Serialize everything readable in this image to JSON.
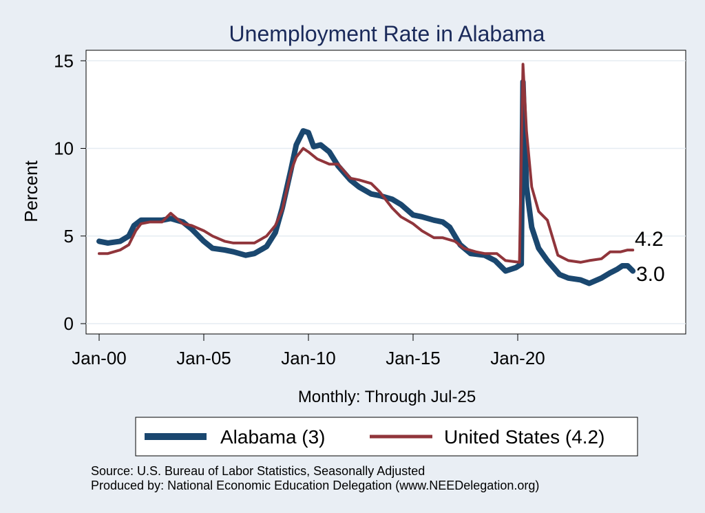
{
  "chart_data": {
    "type": "line",
    "title": "Unemployment Rate in Alabama",
    "xlabel": "Monthly: Through Jul-25",
    "ylabel": "Percent",
    "x_ticks": [
      "Jan-00",
      "Jan-05",
      "Jan-10",
      "Jan-15",
      "Jan-20"
    ],
    "y_ticks": [
      0,
      5,
      10,
      15
    ],
    "ylim": [
      0,
      15.5
    ],
    "xlim": [
      "Jan-00",
      "Jan-28"
    ],
    "grid": true,
    "legend_position": "bottom",
    "end_labels": [
      "4.2",
      "3.0"
    ],
    "series": [
      {
        "name": "Alabama (3)",
        "color": "#1a476f",
        "points": [
          [
            "2000-01",
            4.7
          ],
          [
            "2000-06",
            4.6
          ],
          [
            "2001-01",
            4.7
          ],
          [
            "2001-06",
            5.0
          ],
          [
            "2001-09",
            5.6
          ],
          [
            "2002-01",
            5.9
          ],
          [
            "2002-06",
            5.9
          ],
          [
            "2003-01",
            5.9
          ],
          [
            "2003-06",
            6.0
          ],
          [
            "2004-01",
            5.8
          ],
          [
            "2004-06",
            5.4
          ],
          [
            "2005-01",
            4.7
          ],
          [
            "2005-06",
            4.3
          ],
          [
            "2006-01",
            4.2
          ],
          [
            "2006-06",
            4.1
          ],
          [
            "2007-01",
            3.9
          ],
          [
            "2007-06",
            4.0
          ],
          [
            "2008-01",
            4.4
          ],
          [
            "2008-06",
            5.2
          ],
          [
            "2008-10",
            6.6
          ],
          [
            "2009-03",
            8.8
          ],
          [
            "2009-06",
            10.2
          ],
          [
            "2009-10",
            11.0
          ],
          [
            "2010-01",
            10.9
          ],
          [
            "2010-04",
            10.1
          ],
          [
            "2010-08",
            10.2
          ],
          [
            "2011-01",
            9.8
          ],
          [
            "2011-06",
            9.0
          ],
          [
            "2012-01",
            8.2
          ],
          [
            "2012-06",
            7.8
          ],
          [
            "2013-01",
            7.4
          ],
          [
            "2013-06",
            7.3
          ],
          [
            "2014-01",
            7.1
          ],
          [
            "2014-06",
            6.8
          ],
          [
            "2015-01",
            6.2
          ],
          [
            "2015-06",
            6.1
          ],
          [
            "2016-01",
            5.9
          ],
          [
            "2016-06",
            5.8
          ],
          [
            "2016-10",
            5.5
          ],
          [
            "2017-04",
            4.5
          ],
          [
            "2017-10",
            4.0
          ],
          [
            "2018-06",
            3.9
          ],
          [
            "2018-12",
            3.6
          ],
          [
            "2019-06",
            3.0
          ],
          [
            "2019-12",
            3.2
          ],
          [
            "2020-03",
            3.4
          ],
          [
            "2020-04",
            13.8
          ],
          [
            "2020-06",
            7.8
          ],
          [
            "2020-09",
            5.5
          ],
          [
            "2021-01",
            4.3
          ],
          [
            "2021-06",
            3.6
          ],
          [
            "2022-01",
            2.8
          ],
          [
            "2022-06",
            2.6
          ],
          [
            "2023-01",
            2.5
          ],
          [
            "2023-06",
            2.3
          ],
          [
            "2024-01",
            2.6
          ],
          [
            "2024-06",
            2.9
          ],
          [
            "2024-10",
            3.1
          ],
          [
            "2025-01",
            3.3
          ],
          [
            "2025-04",
            3.3
          ],
          [
            "2025-07",
            3.0
          ]
        ]
      },
      {
        "name": "United States (4.2)",
        "color": "#90353b",
        "points": [
          [
            "2000-01",
            4.0
          ],
          [
            "2000-06",
            4.0
          ],
          [
            "2001-01",
            4.2
          ],
          [
            "2001-06",
            4.5
          ],
          [
            "2001-10",
            5.3
          ],
          [
            "2002-01",
            5.7
          ],
          [
            "2002-06",
            5.8
          ],
          [
            "2003-01",
            5.8
          ],
          [
            "2003-06",
            6.3
          ],
          [
            "2004-01",
            5.7
          ],
          [
            "2004-06",
            5.6
          ],
          [
            "2005-01",
            5.3
          ],
          [
            "2005-06",
            5.0
          ],
          [
            "2006-01",
            4.7
          ],
          [
            "2006-06",
            4.6
          ],
          [
            "2007-01",
            4.6
          ],
          [
            "2007-06",
            4.6
          ],
          [
            "2008-01",
            5.0
          ],
          [
            "2008-06",
            5.6
          ],
          [
            "2008-10",
            6.5
          ],
          [
            "2009-03",
            8.7
          ],
          [
            "2009-06",
            9.5
          ],
          [
            "2009-10",
            10.0
          ],
          [
            "2010-01",
            9.8
          ],
          [
            "2010-06",
            9.4
          ],
          [
            "2011-01",
            9.1
          ],
          [
            "2011-06",
            9.1
          ],
          [
            "2012-01",
            8.3
          ],
          [
            "2012-06",
            8.2
          ],
          [
            "2013-01",
            8.0
          ],
          [
            "2013-06",
            7.5
          ],
          [
            "2014-01",
            6.6
          ],
          [
            "2014-06",
            6.1
          ],
          [
            "2015-01",
            5.7
          ],
          [
            "2015-06",
            5.3
          ],
          [
            "2016-01",
            4.9
          ],
          [
            "2016-06",
            4.9
          ],
          [
            "2017-01",
            4.7
          ],
          [
            "2017-06",
            4.3
          ],
          [
            "2018-01",
            4.1
          ],
          [
            "2018-06",
            4.0
          ],
          [
            "2019-01",
            4.0
          ],
          [
            "2019-06",
            3.6
          ],
          [
            "2020-02",
            3.5
          ],
          [
            "2020-04",
            14.8
          ],
          [
            "2020-06",
            11.0
          ],
          [
            "2020-09",
            7.8
          ],
          [
            "2021-01",
            6.4
          ],
          [
            "2021-06",
            5.9
          ],
          [
            "2021-12",
            3.9
          ],
          [
            "2022-06",
            3.6
          ],
          [
            "2023-01",
            3.5
          ],
          [
            "2023-06",
            3.6
          ],
          [
            "2024-01",
            3.7
          ],
          [
            "2024-06",
            4.1
          ],
          [
            "2024-12",
            4.1
          ],
          [
            "2025-04",
            4.2
          ],
          [
            "2025-07",
            4.2
          ]
        ]
      }
    ]
  },
  "source_text": "Source: U.S. Bureau of Labor Statistics, Seasonally Adjusted",
  "produced_text": "Produced by: National Economic Education Delegation (www.NEEDelegation.org)"
}
